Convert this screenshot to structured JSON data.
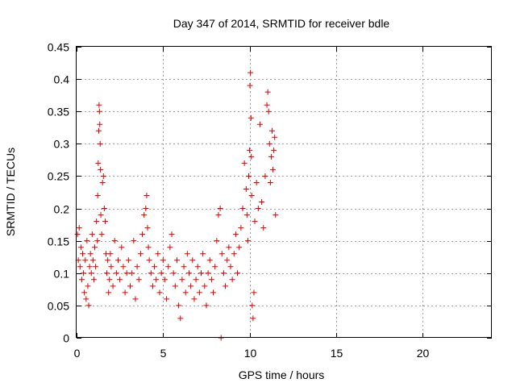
{
  "chart_data": {
    "type": "scatter",
    "title": "Day 347 of 2014, SRMTID for receiver bdle",
    "xlabel": "GPS time / hours",
    "ylabel": "SRMTID / TECUs",
    "xlim": [
      0,
      24
    ],
    "ylim": [
      0,
      0.45
    ],
    "xticks": [
      0,
      5,
      10,
      15,
      20
    ],
    "yticks": [
      0,
      0.05,
      0.1,
      0.15,
      0.2,
      0.25,
      0.3,
      0.35,
      0.4,
      0.45
    ],
    "xtick_labels": [
      "0",
      "5",
      "10",
      "15",
      "20"
    ],
    "ytick_labels": [
      "0",
      "0.05",
      "0.1",
      "0.15",
      "0.2",
      "0.25",
      "0.3",
      "0.35",
      "0.4",
      "0.45"
    ],
    "grid": true,
    "marker": "+",
    "color": "#e00000",
    "series": [
      {
        "name": "SRMTID",
        "points": [
          [
            0.05,
            0.16
          ],
          [
            0.1,
            0.12
          ],
          [
            0.15,
            0.17
          ],
          [
            0.2,
            0.11
          ],
          [
            0.25,
            0.14
          ],
          [
            0.3,
            0.09
          ],
          [
            0.35,
            0.13
          ],
          [
            0.4,
            0.1
          ],
          [
            0.45,
            0.07
          ],
          [
            0.5,
            0.12
          ],
          [
            0.55,
            0.06
          ],
          [
            0.6,
            0.15
          ],
          [
            0.65,
            0.08
          ],
          [
            0.7,
            0.05
          ],
          [
            0.75,
            0.11
          ],
          [
            0.8,
            0.13
          ],
          [
            0.85,
            0.1
          ],
          [
            0.9,
            0.16
          ],
          [
            0.95,
            0.12
          ],
          [
            1.0,
            0.09
          ],
          [
            1.05,
            0.14
          ],
          [
            1.1,
            0.11
          ],
          [
            1.15,
            0.18
          ],
          [
            1.2,
            0.15
          ],
          [
            1.22,
            0.22
          ],
          [
            1.25,
            0.27
          ],
          [
            1.28,
            0.32
          ],
          [
            1.3,
            0.36
          ],
          [
            1.32,
            0.35
          ],
          [
            1.34,
            0.33
          ],
          [
            1.36,
            0.3
          ],
          [
            1.38,
            0.26
          ],
          [
            1.4,
            0.19
          ],
          [
            1.45,
            0.16
          ],
          [
            1.5,
            0.24
          ],
          [
            1.55,
            0.25
          ],
          [
            1.6,
            0.2
          ],
          [
            1.65,
            0.18
          ],
          [
            1.7,
            0.13
          ],
          [
            1.75,
            0.1
          ],
          [
            1.8,
            0.12
          ],
          [
            1.85,
            0.07
          ],
          [
            1.9,
            0.09
          ],
          [
            1.95,
            0.13
          ],
          [
            2.0,
            0.11
          ],
          [
            2.1,
            0.08
          ],
          [
            2.2,
            0.15
          ],
          [
            2.3,
            0.1
          ],
          [
            2.4,
            0.12
          ],
          [
            2.5,
            0.09
          ],
          [
            2.6,
            0.14
          ],
          [
            2.7,
            0.11
          ],
          [
            2.8,
            0.07
          ],
          [
            2.9,
            0.1
          ],
          [
            3.0,
            0.12
          ],
          [
            3.1,
            0.08
          ],
          [
            3.2,
            0.1
          ],
          [
            3.3,
            0.15
          ],
          [
            3.4,
            0.06
          ],
          [
            3.5,
            0.11
          ],
          [
            3.6,
            0.09
          ],
          [
            3.7,
            0.13
          ],
          [
            3.8,
            0.16
          ],
          [
            3.9,
            0.19
          ],
          [
            4.0,
            0.2
          ],
          [
            4.05,
            0.22
          ],
          [
            4.1,
            0.17
          ],
          [
            4.15,
            0.14
          ],
          [
            4.2,
            0.12
          ],
          [
            4.3,
            0.1
          ],
          [
            4.4,
            0.08
          ],
          [
            4.5,
            0.11
          ],
          [
            4.6,
            0.09
          ],
          [
            4.7,
            0.13
          ],
          [
            4.8,
            0.07
          ],
          [
            4.9,
            0.1
          ],
          [
            5.0,
            0.12
          ],
          [
            5.1,
            0.09
          ],
          [
            5.2,
            0.06
          ],
          [
            5.3,
            0.11
          ],
          [
            5.4,
            0.14
          ],
          [
            5.5,
            0.16
          ],
          [
            5.6,
            0.1
          ],
          [
            5.7,
            0.08
          ],
          [
            5.8,
            0.12
          ],
          [
            5.9,
            0.05
          ],
          [
            6.0,
            0.03
          ],
          [
            6.1,
            0.09
          ],
          [
            6.2,
            0.11
          ],
          [
            6.3,
            0.07
          ],
          [
            6.4,
            0.13
          ],
          [
            6.5,
            0.1
          ],
          [
            6.6,
            0.08
          ],
          [
            6.7,
            0.12
          ],
          [
            6.8,
            0.06
          ],
          [
            6.9,
            0.09
          ],
          [
            7.0,
            0.11
          ],
          [
            7.1,
            0.07
          ],
          [
            7.2,
            0.1
          ],
          [
            7.3,
            0.13
          ],
          [
            7.4,
            0.08
          ],
          [
            7.5,
            0.05
          ],
          [
            7.6,
            0.1
          ],
          [
            7.7,
            0.12
          ],
          [
            7.8,
            0.09
          ],
          [
            7.9,
            0.07
          ],
          [
            8.0,
            0.11
          ],
          [
            8.1,
            0.15
          ],
          [
            8.2,
            0.19
          ],
          [
            8.3,
            0.2
          ],
          [
            8.35,
            0.0
          ],
          [
            8.4,
            0.13
          ],
          [
            8.5,
            0.1
          ],
          [
            8.6,
            0.08
          ],
          [
            8.7,
            0.12
          ],
          [
            8.8,
            0.14
          ],
          [
            8.9,
            0.11
          ],
          [
            9.0,
            0.09
          ],
          [
            9.1,
            0.13
          ],
          [
            9.2,
            0.16
          ],
          [
            9.3,
            0.1
          ],
          [
            9.4,
            0.14
          ],
          [
            9.5,
            0.17
          ],
          [
            9.6,
            0.2
          ],
          [
            9.7,
            0.27
          ],
          [
            9.8,
            0.23
          ],
          [
            9.85,
            0.19
          ],
          [
            9.9,
            0.15
          ],
          [
            9.95,
            0.25
          ],
          [
            10.0,
            0.29
          ],
          [
            10.02,
            0.39
          ],
          [
            10.05,
            0.41
          ],
          [
            10.08,
            0.34
          ],
          [
            10.1,
            0.28
          ],
          [
            10.12,
            0.22
          ],
          [
            10.15,
            0.05
          ],
          [
            10.2,
            0.03
          ],
          [
            10.25,
            0.07
          ],
          [
            10.3,
            0.18
          ],
          [
            10.4,
            0.24
          ],
          [
            10.5,
            0.2
          ],
          [
            10.6,
            0.33
          ],
          [
            10.7,
            0.21
          ],
          [
            10.8,
            0.17
          ],
          [
            10.9,
            0.25
          ],
          [
            11.0,
            0.36
          ],
          [
            11.05,
            0.38
          ],
          [
            11.1,
            0.35
          ],
          [
            11.15,
            0.3
          ],
          [
            11.2,
            0.24
          ],
          [
            11.25,
            0.28
          ],
          [
            11.3,
            0.32
          ],
          [
            11.35,
            0.26
          ],
          [
            11.4,
            0.29
          ],
          [
            11.45,
            0.31
          ],
          [
            11.5,
            0.19
          ]
        ]
      }
    ]
  }
}
